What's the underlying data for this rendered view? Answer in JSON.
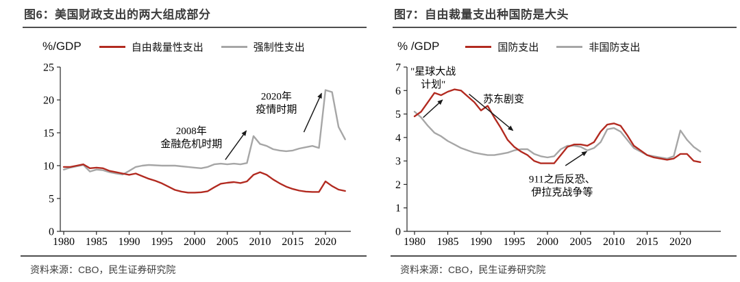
{
  "sources": [
    "资料来源：CBO，民生证券研究院",
    "资料来源：CBO，民生证券研究院"
  ],
  "colors": {
    "line_red": "#b22a20",
    "line_gray": "#a6a6a6",
    "axis": "#262626",
    "annotation": "#1a1a1a",
    "rule": "#4d4d4d"
  },
  "chart_data": [
    {
      "type": "line",
      "title": "图6：美国财政支出的两大组成部分",
      "ylabel": "%/GDP",
      "xlabel": "",
      "x_start": 1980,
      "x_end": 2023,
      "x_ticks": [
        1980,
        1985,
        1990,
        1995,
        2000,
        2005,
        2010,
        2015,
        2020
      ],
      "ylim": [
        0,
        25
      ],
      "y_ticks": [
        0,
        5,
        10,
        15,
        20,
        25
      ],
      "grid": false,
      "legend_position": "top",
      "series": [
        {
          "name": "自由裁量性支出",
          "color": "#b22a20",
          "values": [
            9.8,
            9.8,
            10.0,
            10.2,
            9.6,
            9.7,
            9.6,
            9.2,
            9.0,
            8.8,
            8.6,
            8.8,
            8.4,
            8.0,
            7.7,
            7.3,
            6.8,
            6.3,
            6.05,
            5.9,
            5.9,
            5.95,
            6.1,
            6.7,
            7.25,
            7.4,
            7.5,
            7.35,
            7.6,
            8.6,
            9.0,
            8.6,
            7.9,
            7.3,
            6.8,
            6.45,
            6.2,
            6.05,
            6.0,
            6.0,
            7.6,
            6.9,
            6.35,
            6.15
          ]
        },
        {
          "name": "强制性支出",
          "color": "#a6a6a6",
          "values": [
            9.4,
            9.7,
            9.9,
            10.1,
            9.1,
            9.4,
            9.3,
            9.0,
            8.8,
            8.65,
            9.2,
            9.8,
            10.0,
            10.1,
            10.05,
            10.0,
            10.0,
            10.0,
            9.9,
            9.8,
            9.7,
            9.6,
            9.8,
            10.2,
            10.3,
            10.2,
            10.3,
            10.2,
            10.4,
            14.5,
            13.3,
            13.0,
            12.5,
            12.3,
            12.2,
            12.3,
            12.6,
            12.8,
            13.0,
            12.7,
            21.5,
            21.2,
            15.9,
            14.0
          ]
        }
      ],
      "annotations": [
        {
          "lines": [
            "2008年",
            "金融危机时期"
          ],
          "at": {
            "year": 1999.5,
            "value": 14.3
          },
          "arrow": {
            "from": {
              "year": 2004.7,
              "value": 10.9
            },
            "to": {
              "year": 2007.9,
              "value": 15.3
            }
          }
        },
        {
          "lines": [
            "2020年",
            "疫情时期"
          ],
          "at": {
            "year": 2012.5,
            "value": 19.6
          },
          "arrow": {
            "from": {
              "year": 2016.7,
              "value": 15.1
            },
            "to": {
              "year": 2019.4,
              "value": 21.0
            }
          }
        }
      ]
    },
    {
      "type": "line",
      "title": "图7：自由裁量支出种国防是大头",
      "ylabel": "% /GDP",
      "xlabel": "",
      "x_start": 1980,
      "x_end": 2023,
      "x_ticks": [
        1980,
        1985,
        1990,
        1995,
        2000,
        2005,
        2010,
        2015,
        2020
      ],
      "ylim": [
        0,
        7
      ],
      "y_ticks": [
        0,
        1,
        2,
        3,
        4,
        5,
        6,
        7
      ],
      "grid": false,
      "legend_position": "top",
      "series": [
        {
          "name": "国防支出",
          "color": "#b22a20",
          "values": [
            4.9,
            5.1,
            5.5,
            5.9,
            5.8,
            5.95,
            6.05,
            6.0,
            5.75,
            5.5,
            5.15,
            5.35,
            4.85,
            4.4,
            3.9,
            3.6,
            3.4,
            3.25,
            3.0,
            2.9,
            2.9,
            2.9,
            3.25,
            3.6,
            3.7,
            3.7,
            3.65,
            3.8,
            4.25,
            4.55,
            4.6,
            4.5,
            4.1,
            3.65,
            3.45,
            3.25,
            3.15,
            3.1,
            3.05,
            3.1,
            3.3,
            3.3,
            3.0,
            2.95
          ]
        },
        {
          "name": "非国防支出",
          "color": "#a6a6a6",
          "values": [
            5.1,
            4.85,
            4.5,
            4.2,
            4.05,
            3.85,
            3.7,
            3.55,
            3.45,
            3.35,
            3.3,
            3.25,
            3.25,
            3.3,
            3.35,
            3.45,
            3.5,
            3.5,
            3.3,
            3.2,
            3.15,
            3.2,
            3.5,
            3.65,
            3.65,
            3.6,
            3.45,
            3.55,
            3.8,
            4.35,
            4.4,
            4.25,
            3.9,
            3.55,
            3.4,
            3.25,
            3.2,
            3.15,
            3.1,
            3.2,
            4.3,
            3.9,
            3.6,
            3.4
          ]
        }
      ],
      "annotations": [
        {
          "lines": [
            "\"星球大战",
            "计划\""
          ],
          "at": {
            "year": 1982.8,
            "value": 6.55
          },
          "arrow": {
            "from": {
              "year": 1981.3,
              "value": 4.85
            },
            "to": {
              "year": 1984.2,
              "value": 5.6
            }
          }
        },
        {
          "lines": [
            "苏东剧变"
          ],
          "at": {
            "year": 1993.4,
            "value": 5.65
          },
          "arrow": {
            "from": {
              "year": 1988.2,
              "value": 5.85
            },
            "to": {
              "year": 1994.8,
              "value": 4.3
            }
          }
        },
        {
          "lines": [
            "911之后反恐、",
            "伊拉克战争等"
          ],
          "at": {
            "year": 2002.2,
            "value": 1.95
          },
          "arrow": {
            "from": {
              "year": 2002.7,
              "value": 2.8
            },
            "to": {
              "year": 2005.9,
              "value": 3.4
            }
          }
        }
      ]
    }
  ]
}
